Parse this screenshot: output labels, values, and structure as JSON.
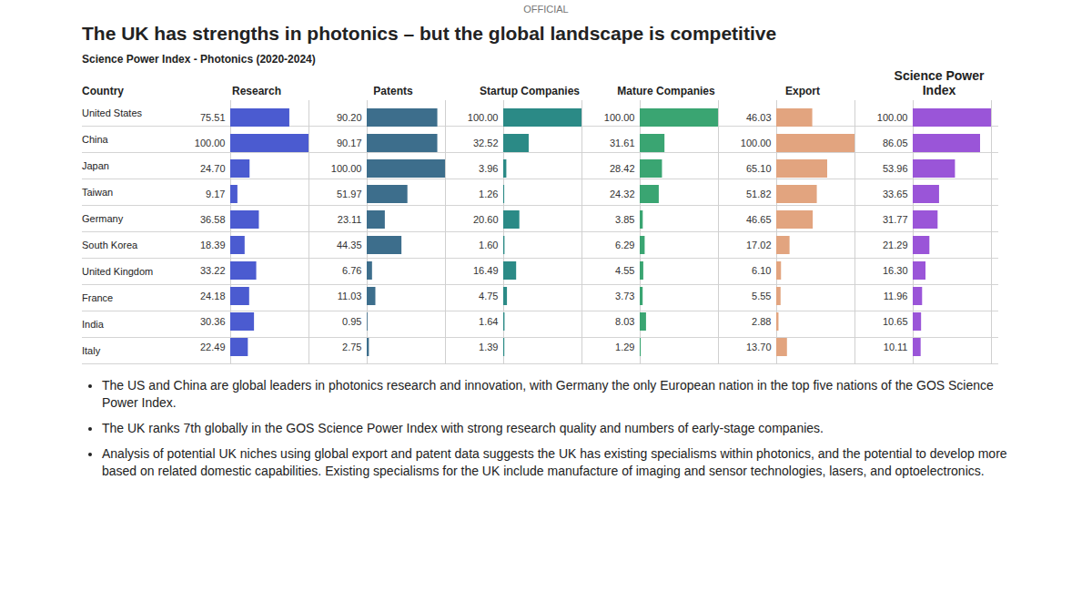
{
  "slide": {
    "marking": "OFFICIAL",
    "title": "The UK has strengths in photonics – but the global landscape is competitive",
    "table_title": "Science Power Index - Photonics (2020-2024)",
    "bullets": [
      "The US and China are global leaders in photonics research and innovation, with Germany the only European nation in the top five nations of the GOS Science Power Index.",
      "The UK ranks 7th globally in the GOS Science Power Index with strong research quality and numbers of early-stage companies.",
      "Analysis of potential UK niches using global export and patent data suggests the UK has existing specialisms within photonics, and the potential to develop more based on related domestic capabilities. Existing specialisms for the UK include manufacture of imaging and sensor technologies, lasers, and optoelectronics."
    ]
  },
  "chart_data": [
    {
      "type": "bar",
      "orientation": "horizontal",
      "title": "Research",
      "ylabel": "Country",
      "categories": [
        "United States",
        "China",
        "Japan",
        "Taiwan",
        "Germany",
        "South Korea",
        "United Kingdom",
        "France",
        "India",
        "Italy"
      ],
      "values": [
        75.51,
        100,
        24.7,
        9.17,
        36.58,
        18.39,
        33.22,
        24.18,
        30.36,
        22.49
      ],
      "value_labels": [
        "75.51",
        "100.00",
        "24.70",
        "9.17",
        "36.58",
        "18.39",
        "33.22",
        "24.18",
        "30.36",
        "22.49"
      ],
      "color": "#4b5bd0",
      "xlim": [
        0,
        100
      ],
      "data_labels": true,
      "tick_labels": "y"
    },
    {
      "type": "bar",
      "orientation": "horizontal",
      "title": "Patents",
      "categories": [
        "United States",
        "China",
        "Japan",
        "Taiwan",
        "Germany",
        "South Korea",
        "United Kingdom",
        "France",
        "India",
        "Italy"
      ],
      "values": [
        90.2,
        90.17,
        100,
        51.97,
        23.11,
        44.35,
        6.76,
        11.03,
        0.95,
        2.75
      ],
      "value_labels": [
        "90.20",
        "90.17",
        "100.00",
        "51.97",
        "23.11",
        "44.35",
        "6.76",
        "11.03",
        "0.95",
        "2.75"
      ],
      "color": "#3d6e8c",
      "xlim": [
        0,
        100
      ],
      "data_labels": true,
      "tick_labels": false
    },
    {
      "type": "bar",
      "orientation": "horizontal",
      "title": "Startup Companies",
      "categories": [
        "United States",
        "China",
        "Japan",
        "Taiwan",
        "Germany",
        "South Korea",
        "United Kingdom",
        "France",
        "India",
        "Italy"
      ],
      "values": [
        100,
        32.52,
        3.96,
        1.26,
        20.6,
        1.6,
        16.49,
        4.75,
        1.64,
        1.39
      ],
      "value_labels": [
        "100.00",
        "32.52",
        "3.96",
        "1.26",
        "20.60",
        "1.60",
        "16.49",
        "4.75",
        "1.64",
        "1.39"
      ],
      "color": "#2b8a86",
      "xlim": [
        0,
        100
      ],
      "data_labels": true,
      "tick_labels": false
    },
    {
      "type": "bar",
      "orientation": "horizontal",
      "title": "Mature Companies",
      "categories": [
        "United States",
        "China",
        "Japan",
        "Taiwan",
        "Germany",
        "South Korea",
        "United Kingdom",
        "France",
        "India",
        "Italy"
      ],
      "values": [
        100,
        31.61,
        28.42,
        24.32,
        3.85,
        6.29,
        4.55,
        3.73,
        8.03,
        1.29
      ],
      "value_labels": [
        "100.00",
        "31.61",
        "28.42",
        "24.32",
        "3.85",
        "6.29",
        "4.55",
        "3.73",
        "8.03",
        "1.29"
      ],
      "color": "#3aa572",
      "xlim": [
        0,
        100
      ],
      "data_labels": true,
      "tick_labels": false
    },
    {
      "type": "bar",
      "orientation": "horizontal",
      "title": "Export",
      "categories": [
        "United States",
        "China",
        "Japan",
        "Taiwan",
        "Germany",
        "South Korea",
        "United Kingdom",
        "France",
        "India",
        "Italy"
      ],
      "values": [
        46.03,
        100,
        65.1,
        51.82,
        46.65,
        17.02,
        6.1,
        5.55,
        2.88,
        13.7
      ],
      "value_labels": [
        "46.03",
        "100.00",
        "65.10",
        "51.82",
        "46.65",
        "17.02",
        "6.10",
        "5.55",
        "2.88",
        "13.70"
      ],
      "color": "#e2a47f",
      "xlim": [
        0,
        100
      ],
      "data_labels": true,
      "tick_labels": false
    },
    {
      "type": "bar",
      "orientation": "horizontal",
      "title": "Science Power Index",
      "categories": [
        "United States",
        "China",
        "Japan",
        "Taiwan",
        "Germany",
        "South Korea",
        "United Kingdom",
        "France",
        "India",
        "Italy"
      ],
      "values": [
        100,
        86.05,
        53.96,
        33.65,
        31.77,
        21.29,
        16.3,
        11.96,
        10.65,
        10.11
      ],
      "value_labels": [
        "100.00",
        "86.05",
        "53.96",
        "33.65",
        "31.77",
        "21.29",
        "16.30",
        "11.96",
        "10.65",
        "10.11"
      ],
      "color": "#9a55d8",
      "xlim": [
        0,
        100
      ],
      "data_labels": true,
      "tick_labels": false
    }
  ]
}
